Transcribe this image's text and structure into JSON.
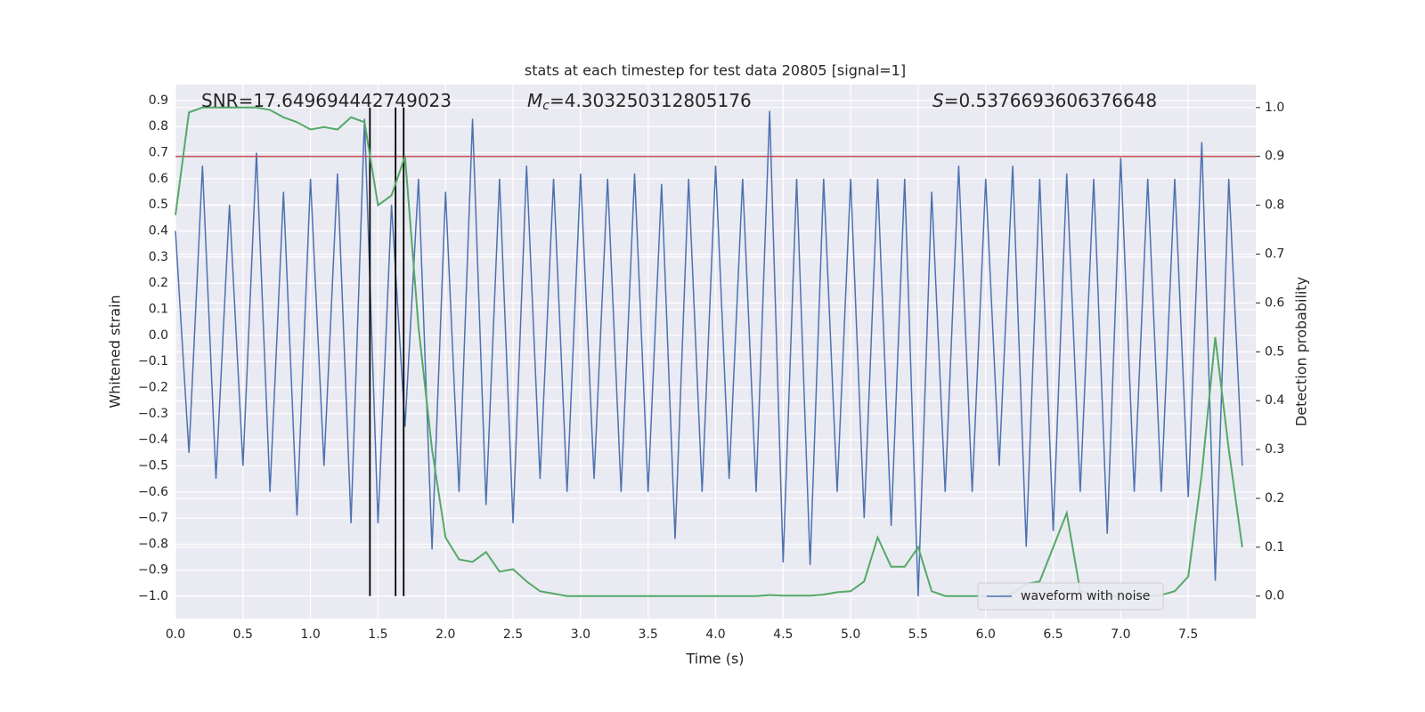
{
  "chart_data": {
    "type": "line",
    "title": "stats at each timestep for test data 20805 [signal=1]",
    "xlabel": "Time (s)",
    "ylabel": "Whitened strain",
    "y2label": "Detection probability",
    "annotations": [
      {
        "name": "SNR",
        "text": "=17.649694442749023"
      },
      {
        "name": "M",
        "sub": "c",
        "italic": true,
        "text": "=4.303250312805176"
      },
      {
        "name": "S",
        "italic": true,
        "text": "=0.5376693606376648"
      }
    ],
    "x": [
      0,
      0.1,
      0.2,
      0.3,
      0.4,
      0.5,
      0.6,
      0.7,
      0.8,
      0.9,
      1,
      1.1,
      1.2,
      1.3,
      1.4,
      1.5,
      1.6,
      1.7,
      1.8,
      1.9,
      2,
      2.1,
      2.2,
      2.3,
      2.4,
      2.5,
      2.6,
      2.7,
      2.8,
      2.9,
      3,
      3.1,
      3.2,
      3.3,
      3.4,
      3.5,
      3.6,
      3.7,
      3.8,
      3.9,
      4,
      4.1,
      4.2,
      4.3,
      4.4,
      4.5,
      4.6,
      4.7,
      4.8,
      4.9,
      5,
      5.1,
      5.2,
      5.3,
      5.4,
      5.5,
      5.6,
      5.7,
      5.8,
      5.9,
      6,
      6.1,
      6.2,
      6.3,
      6.4,
      6.5,
      6.6,
      6.7,
      6.8,
      6.9,
      7,
      7.1,
      7.2,
      7.3,
      7.4,
      7.5,
      7.6,
      7.7,
      7.8,
      7.9
    ],
    "series": [
      {
        "name": "waveform with noise",
        "color": "#4c72b0",
        "values": [
          0.4,
          -0.45,
          0.65,
          -0.55,
          0.5,
          -0.5,
          0.7,
          -0.6,
          0.55,
          -0.69,
          0.6,
          -0.5,
          0.62,
          -0.72,
          0.83,
          -0.72,
          0.5,
          -0.35,
          0.6,
          -0.82,
          0.55,
          -0.6,
          0.83,
          -0.65,
          0.6,
          -0.72,
          0.65,
          -0.55,
          0.6,
          -0.6,
          0.62,
          -0.55,
          0.6,
          -0.6,
          0.62,
          -0.6,
          0.58,
          -0.78,
          0.6,
          -0.6,
          0.65,
          -0.55,
          0.6,
          -0.6,
          0.86,
          -0.87,
          0.6,
          -0.88,
          0.6,
          -0.6,
          0.6,
          -0.7,
          0.6,
          -0.73,
          0.6,
          -1.0,
          0.55,
          -0.6,
          0.65,
          -0.6,
          0.6,
          -0.5,
          0.65,
          -0.81,
          0.6,
          -0.75,
          0.62,
          -0.6,
          0.6,
          -0.76,
          0.68,
          -0.6,
          0.6,
          -0.6,
          0.6,
          -0.62,
          0.74,
          -0.94,
          0.6,
          -0.5
        ]
      },
      {
        "color": "#55a868",
        "axis": "y2",
        "values": [
          0.78,
          0.99,
          1.0,
          1.0,
          1.0,
          1.0,
          1.0,
          0.995,
          0.98,
          0.97,
          0.955,
          0.96,
          0.955,
          0.98,
          0.97,
          0.8,
          0.82,
          0.9,
          0.55,
          0.3,
          0.12,
          0.075,
          0.07,
          0.09,
          0.05,
          0.055,
          0.03,
          0.01,
          0.005,
          0.0,
          0,
          0,
          0,
          0,
          0,
          0,
          0,
          0,
          0,
          0,
          0,
          0,
          0,
          0,
          0.002,
          0.001,
          0.001,
          0.001,
          0.003,
          0.008,
          0.01,
          0.03,
          0.12,
          0.06,
          0.06,
          0.1,
          0.01,
          0.0,
          0.0,
          0.0,
          0.0,
          0.0,
          0.005,
          0.025,
          0.03,
          0.1,
          0.17,
          0.01,
          0.003,
          0.0,
          0,
          0,
          0,
          0.002,
          0.01,
          0.04,
          0.25,
          0.53,
          0.3,
          0.1
        ]
      }
    ],
    "threshold": {
      "value": 0.9,
      "axis": "y2",
      "color": "#c44e52"
    },
    "vlines": {
      "x": [
        1.44,
        1.63,
        1.69
      ],
      "y2_range": [
        0,
        1
      ],
      "color": "#000000"
    },
    "xlim": [
      0,
      8
    ],
    "xticks": [
      {
        "value": 0,
        "label": "0.0"
      },
      {
        "value": 0.5,
        "label": "0.5"
      },
      {
        "value": 1,
        "label": "1.0"
      },
      {
        "value": 1.5,
        "label": "1.5"
      },
      {
        "value": 2,
        "label": "2.0"
      },
      {
        "value": 2.5,
        "label": "2.5"
      },
      {
        "value": 3,
        "label": "3.0"
      },
      {
        "value": 3.5,
        "label": "3.5"
      },
      {
        "value": 4,
        "label": "4.0"
      },
      {
        "value": 4.5,
        "label": "4.5"
      },
      {
        "value": 5,
        "label": "5.0"
      },
      {
        "value": 5.5,
        "label": "5.5"
      },
      {
        "value": 6,
        "label": "6.0"
      },
      {
        "value": 6.5,
        "label": "6.5"
      },
      {
        "value": 7,
        "label": "7.0"
      },
      {
        "value": 7.5,
        "label": "7.5"
      }
    ],
    "ylim": [
      -1.085,
      0.961
    ],
    "yticks": [
      {
        "value": -1,
        "label": "−1.0"
      },
      {
        "value": -0.9,
        "label": "−0.9"
      },
      {
        "value": -0.8,
        "label": "−0.8"
      },
      {
        "value": -0.7,
        "label": "−0.7"
      },
      {
        "value": -0.6,
        "label": "−0.6"
      },
      {
        "value": -0.5,
        "label": "−0.5"
      },
      {
        "value": -0.4,
        "label": "−0.4"
      },
      {
        "value": -0.3,
        "label": "−0.3"
      },
      {
        "value": -0.2,
        "label": "−0.2"
      },
      {
        "value": -0.1,
        "label": "−0.1"
      },
      {
        "value": 0,
        "label": "0.0"
      },
      {
        "value": 0.1,
        "label": "0.1"
      },
      {
        "value": 0.2,
        "label": "0.2"
      },
      {
        "value": 0.3,
        "label": "0.3"
      },
      {
        "value": 0.4,
        "label": "0.4"
      },
      {
        "value": 0.5,
        "label": "0.5"
      },
      {
        "value": 0.6,
        "label": "0.6"
      },
      {
        "value": 0.7,
        "label": "0.7"
      },
      {
        "value": 0.8,
        "label": "0.8"
      },
      {
        "value": 0.9,
        "label": "0.9"
      }
    ],
    "y2lim": [
      -0.046,
      1.047
    ],
    "y2ticks": [
      {
        "value": 0,
        "label": "0.0"
      },
      {
        "value": 0.1,
        "label": "0.1"
      },
      {
        "value": 0.2,
        "label": "0.2"
      },
      {
        "value": 0.3,
        "label": "0.3"
      },
      {
        "value": 0.4,
        "label": "0.4"
      },
      {
        "value": 0.5,
        "label": "0.5"
      },
      {
        "value": 0.6,
        "label": "0.6"
      },
      {
        "value": 0.7,
        "label": "0.7"
      },
      {
        "value": 0.8,
        "label": "0.8"
      },
      {
        "value": 0.9,
        "label": "0.9"
      },
      {
        "value": 1,
        "label": "1.0"
      }
    ],
    "grid": true,
    "legend": "lower right"
  }
}
